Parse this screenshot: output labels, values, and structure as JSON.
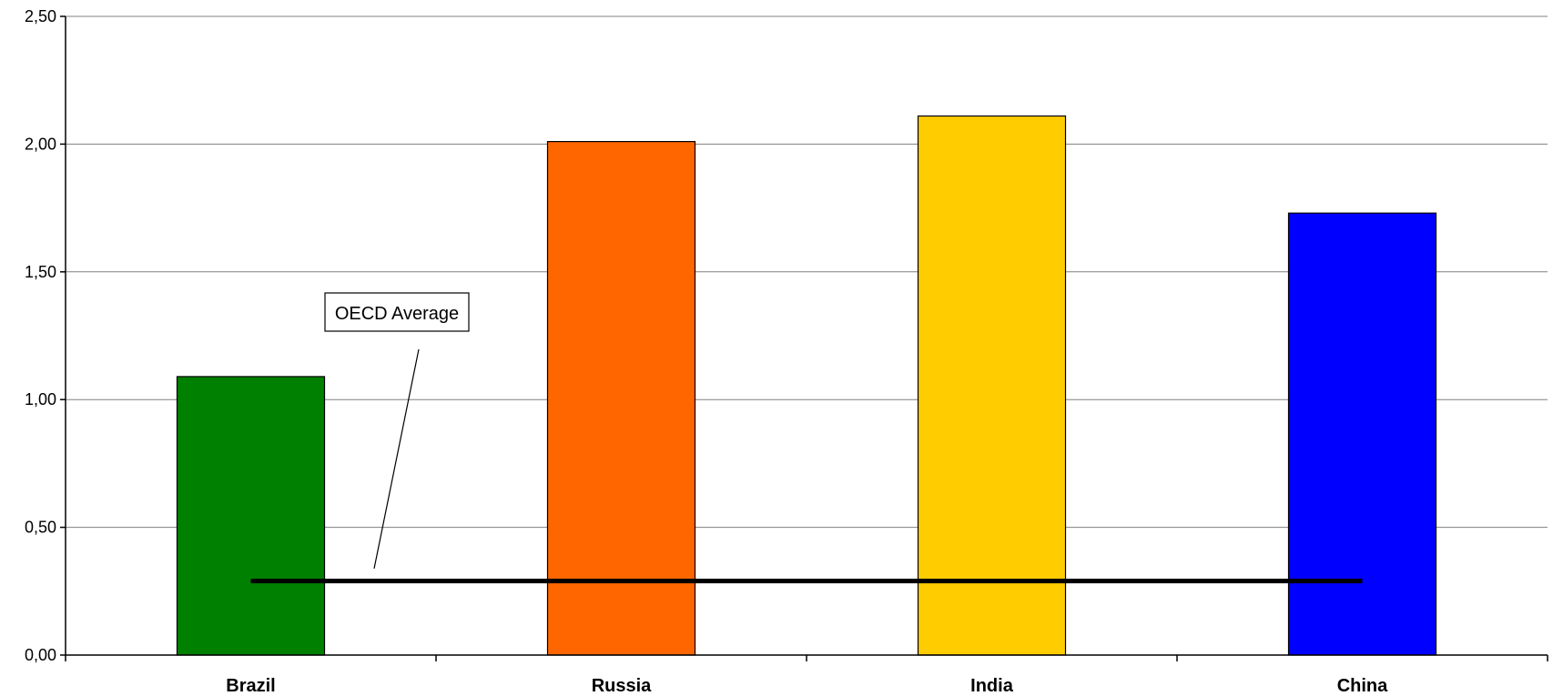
{
  "chart_data": {
    "type": "bar",
    "categories": [
      "Brazil",
      "Russia",
      "India",
      "China"
    ],
    "values": [
      1.09,
      2.01,
      2.11,
      1.73
    ],
    "colors": [
      "#008000",
      "#ff6600",
      "#ffcc00",
      "#0000ff"
    ],
    "ylim": [
      0,
      2.5
    ],
    "yticks": [
      0,
      0.5,
      1.0,
      1.5,
      2.0,
      2.5
    ],
    "ytick_labels": [
      "0,00",
      "0,50",
      "1,00",
      "1,50",
      "2,00",
      "2,50"
    ],
    "grid": true,
    "legend": "none",
    "reference_line": {
      "label": "OECD Average",
      "value": 0.29,
      "color": "#000000"
    },
    "title": "",
    "xlabel": "",
    "ylabel": ""
  }
}
